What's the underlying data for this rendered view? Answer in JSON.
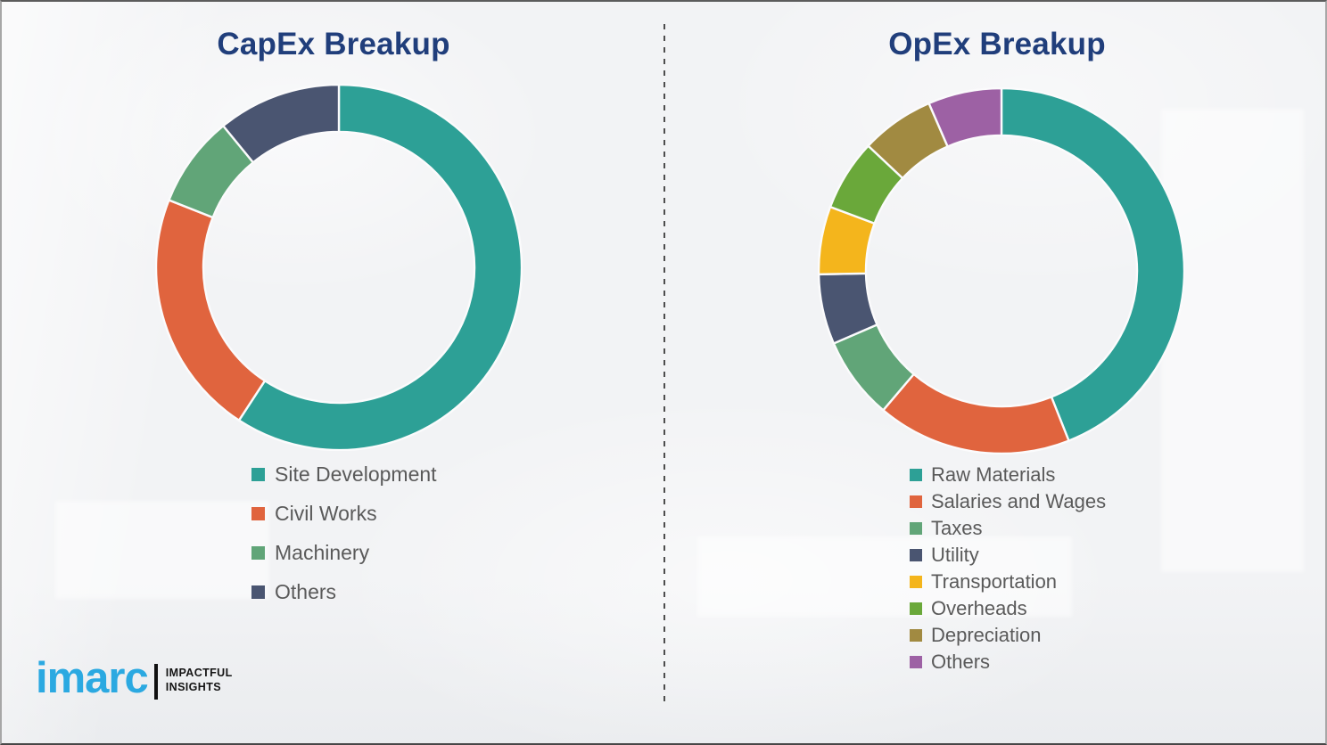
{
  "chart_data": [
    {
      "type": "pie",
      "variant": "donut",
      "title": "CapEx Breakup",
      "categories": [
        "Site Development",
        "Civil Works",
        "Machinery",
        "Others"
      ],
      "values": [
        59.2,
        21.8,
        8.1,
        10.9
      ],
      "unit": "percent-share",
      "colors": [
        "#2DA096",
        "#E0643E",
        "#61A578",
        "#4A5571"
      ],
      "start_angle_deg": 0,
      "direction": "clockwise",
      "donut_hole_ratio": 0.74,
      "data_labels": false,
      "legend_position": "below-left"
    },
    {
      "type": "pie",
      "variant": "donut",
      "title": "OpEx Breakup",
      "categories": [
        "Raw Materials",
        "Salaries and Wages",
        "Taxes",
        "Utility",
        "Transportation",
        "Overheads",
        "Depreciation",
        "Others"
      ],
      "values": [
        44.0,
        17.2,
        7.3,
        6.2,
        6.0,
        6.3,
        6.5,
        6.5
      ],
      "unit": "percent-share",
      "colors": [
        "#2DA096",
        "#E0643E",
        "#61A578",
        "#4A5571",
        "#F4B51C",
        "#6AA83A",
        "#A18A41",
        "#9D61A4"
      ],
      "start_angle_deg": 0,
      "direction": "clockwise",
      "donut_hole_ratio": 0.74,
      "data_labels": false,
      "legend_position": "below-left"
    }
  ],
  "theme": {
    "title_color": "#203E7B",
    "legend_text_color": "#5A5A5A",
    "background": "#F2F3F5",
    "divider_color": "#4D4D4D",
    "logo_brand_color": "#2BA9E1"
  },
  "logo": {
    "brand": "imarc",
    "tagline_line1": "IMPACTFUL",
    "tagline_line2": "INSIGHTS"
  }
}
